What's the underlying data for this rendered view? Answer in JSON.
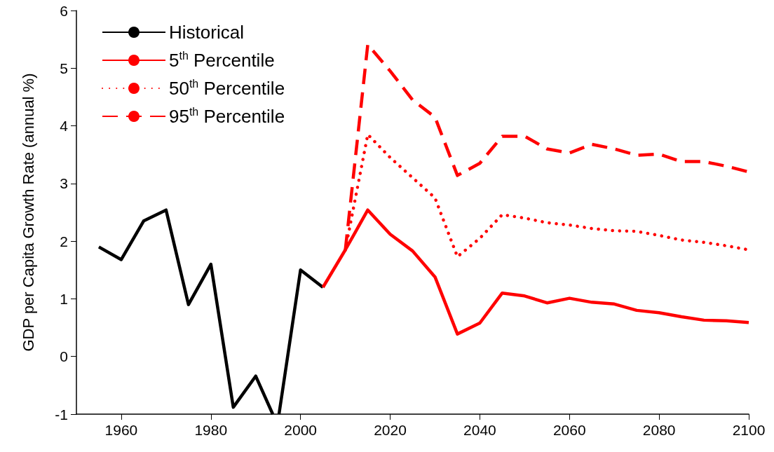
{
  "chart_data": {
    "type": "line",
    "ylabel": "GDP per Capita Growth Rate (annual %)",
    "xlim": [
      1950,
      2100
    ],
    "xticks": [
      1960,
      1980,
      2000,
      2020,
      2040,
      2060,
      2080,
      2100
    ],
    "ylim": [
      -1,
      6
    ],
    "yticks": [
      -1,
      0,
      1,
      2,
      3,
      4,
      5,
      6
    ],
    "grid": false,
    "legend": "top left",
    "marker": "none",
    "series": [
      {
        "name": "Historical",
        "color": "#000000",
        "line_style": "solid",
        "x": [
          1955,
          1960,
          1965,
          1970,
          1975,
          1980,
          1985,
          1990,
          1993.8,
          1995,
          1995.2,
          2000,
          2005
        ],
        "values": [
          1.9,
          1.68,
          2.35,
          2.54,
          0.9,
          1.6,
          -0.88,
          -0.34,
          -1,
          null,
          -1,
          1.5,
          1.2
        ]
      },
      {
        "name": "5$^{th}$ Percentile",
        "color": "#ff0000",
        "line_style": "solid",
        "x": [
          2005,
          2010,
          2015,
          2020,
          2025,
          2030,
          2035,
          2040,
          2045,
          2050,
          2055,
          2060,
          2065,
          2070,
          2075,
          2080,
          2085,
          2090,
          2095,
          2100
        ],
        "values": [
          1.2,
          1.85,
          2.54,
          2.12,
          1.83,
          1.38,
          0.39,
          0.58,
          1.1,
          1.05,
          0.93,
          1.01,
          0.94,
          0.91,
          0.8,
          0.76,
          0.69,
          0.63,
          0.62,
          0.59
        ]
      },
      {
        "name": "50$^{th}$ Percentile",
        "color": "#ff0000",
        "line_style": "dotted",
        "x": [
          2010,
          2015,
          2020,
          2025,
          2030,
          2035,
          2040,
          2045,
          2050,
          2055,
          2060,
          2065,
          2070,
          2075,
          2080,
          2085,
          2090,
          2095,
          2100
        ],
        "values": [
          1.85,
          3.85,
          3.45,
          3.1,
          2.75,
          1.73,
          2.05,
          2.46,
          2.4,
          2.32,
          2.28,
          2.22,
          2.18,
          2.17,
          2.1,
          2.02,
          1.98,
          1.92,
          1.85
        ]
      },
      {
        "name": "95$^{th}$ Percentile",
        "color": "#ff0000",
        "line_style": "dashed",
        "x": [
          2010,
          2015,
          2020,
          2025,
          2030,
          2035,
          2040,
          2045,
          2050,
          2055,
          2060,
          2065,
          2070,
          2075,
          2080,
          2085,
          2090,
          2095,
          2100
        ],
        "values": [
          1.85,
          5.41,
          4.95,
          4.45,
          4.15,
          3.14,
          3.35,
          3.82,
          3.82,
          3.6,
          3.53,
          3.68,
          3.6,
          3.49,
          3.51,
          3.38,
          3.38,
          3.3,
          3.2
        ]
      }
    ]
  }
}
